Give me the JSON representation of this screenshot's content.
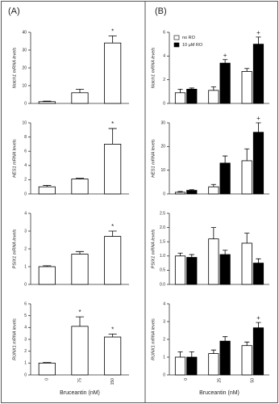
{
  "panel_labels": [
    "(A)",
    "(B)"
  ],
  "chart_data": [
    {
      "type": "bar",
      "ylabel": "Notch1 mRNA levels",
      "values": [
        1,
        6,
        34
      ],
      "errors": [
        0.3,
        2,
        4
      ],
      "markers": [
        null,
        null,
        "*"
      ],
      "color": "#ffffff",
      "ylim": [
        0,
        40
      ],
      "yticks": [
        0,
        10,
        20,
        30,
        40
      ]
    },
    {
      "type": "bar",
      "ylabel": "HES1 mRNA levels",
      "values": [
        1,
        2.1,
        7
      ],
      "errors": [
        0.2,
        0.1,
        2.2
      ],
      "markers": [
        null,
        null,
        "*"
      ],
      "color": "#ffffff",
      "ylim": [
        0,
        10
      ],
      "yticks": [
        0,
        2,
        4,
        6,
        8,
        10
      ]
    },
    {
      "type": "bar",
      "ylabel": "PSIX1 mRNA levels",
      "values": [
        1,
        1.7,
        2.7
      ],
      "errors": [
        0.05,
        0.15,
        0.3
      ],
      "markers": [
        null,
        null,
        "*"
      ],
      "color": "#ffffff",
      "ylim": [
        0,
        4
      ],
      "yticks": [
        0,
        1,
        2,
        3,
        4
      ]
    },
    {
      "type": "bar",
      "ylabel": "RUNX1 mRNA levels",
      "xlabel": "Bruceantin (nM)",
      "categories": [
        "0",
        "75",
        "150"
      ],
      "values": [
        1,
        4.1,
        3.2
      ],
      "errors": [
        0.05,
        0.8,
        0.25
      ],
      "markers": [
        null,
        "*",
        "*"
      ],
      "color": "#ffffff",
      "ylim": [
        0,
        6
      ],
      "yticks": [
        0,
        1,
        2,
        3,
        4,
        5,
        6
      ]
    },
    {
      "type": "grouped-bar",
      "ylabel": "Notch1 mRNA levels",
      "legend": "upper left",
      "ylim": [
        0,
        6
      ],
      "yticks": [
        0,
        2,
        4,
        6
      ],
      "series": [
        {
          "name": "no RO",
          "color": "#ffffff",
          "values": [
            0.9,
            1.1,
            2.7
          ],
          "errors": [
            0.3,
            0.3,
            0.25
          ],
          "markers": [
            null,
            null,
            null
          ]
        },
        {
          "name": "10 μM RO",
          "color": "#000000",
          "values": [
            1.2,
            3.4,
            5.0
          ],
          "errors": [
            0.1,
            0.3,
            0.6
          ],
          "markers": [
            null,
            "+",
            "+"
          ]
        }
      ]
    },
    {
      "type": "grouped-bar",
      "ylabel": "HES1 mRNA levels",
      "ylim": [
        0,
        30
      ],
      "yticks": [
        0,
        10,
        20,
        30
      ],
      "series": [
        {
          "color": "#ffffff",
          "values": [
            0.7,
            3,
            14
          ],
          "errors": [
            0.3,
            1,
            5
          ],
          "markers": [
            null,
            null,
            null
          ]
        },
        {
          "color": "#000000",
          "values": [
            1.5,
            13,
            26
          ],
          "errors": [
            0.3,
            3,
            4
          ],
          "markers": [
            null,
            null,
            "+"
          ]
        }
      ]
    },
    {
      "type": "grouped-bar",
      "ylabel": "PSIX1 mRNA levels",
      "ylim": [
        0,
        2.5
      ],
      "yticks": [
        {
          "value": 0,
          "label": "0.0"
        },
        0.5,
        {
          "value": 1,
          "label": "1.0"
        },
        1.5,
        {
          "value": 2,
          "label": "2.0"
        },
        2.5
      ],
      "series": [
        {
          "color": "#ffffff",
          "values": [
            1.0,
            1.6,
            1.45
          ],
          "errors": [
            0.1,
            0.4,
            0.35
          ],
          "markers": [
            null,
            null,
            null
          ]
        },
        {
          "color": "#000000",
          "values": [
            0.95,
            1.05,
            0.75
          ],
          "errors": [
            0.1,
            0.15,
            0.15
          ],
          "markers": [
            null,
            null,
            null
          ]
        }
      ]
    },
    {
      "type": "grouped-bar",
      "ylabel": "RUNX1 mRNA levels",
      "xlabel": "Bruceantin (nM)",
      "categories": [
        "0",
        "25",
        "50"
      ],
      "ylim": [
        0,
        4
      ],
      "yticks": [
        0,
        1,
        2,
        3,
        4
      ],
      "series": [
        {
          "color": "#ffffff",
          "values": [
            1.0,
            1.2,
            1.65
          ],
          "errors": [
            0.3,
            0.2,
            0.2
          ],
          "markers": [
            null,
            null,
            null
          ]
        },
        {
          "color": "#000000",
          "values": [
            1.0,
            1.9,
            2.65
          ],
          "errors": [
            0.3,
            0.25,
            0.3
          ],
          "markers": [
            null,
            null,
            "+"
          ]
        }
      ]
    }
  ]
}
